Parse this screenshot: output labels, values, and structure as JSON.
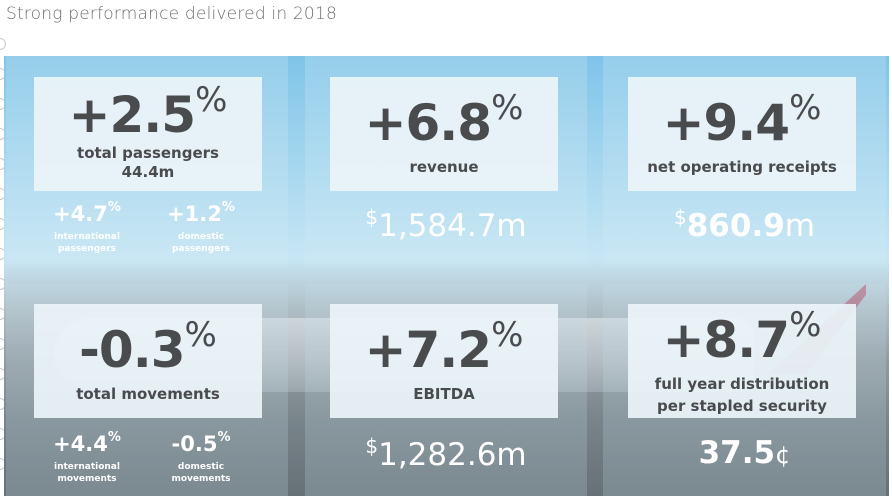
{
  "page": {
    "title": "Strong performance delivered in 2018"
  },
  "tiles": [
    {
      "value": "+2.5",
      "suffix": "%",
      "label": "total passengers",
      "sublabel": "44.4m",
      "breakdown": [
        {
          "value": "+4.7",
          "suffix": "%",
          "label_line1": "international",
          "label_line2": "passengers"
        },
        {
          "value": "+1.2",
          "suffix": "%",
          "label_line1": "domestic",
          "label_line2": "passengers"
        }
      ]
    },
    {
      "value": "+6.8",
      "suffix": "%",
      "label": "revenue",
      "amount": {
        "currency": "$",
        "number": "1,584.7",
        "unit": "m"
      }
    },
    {
      "value": "+9.4",
      "suffix": "%",
      "label": "net operating receipts",
      "amount": {
        "currency": "$",
        "number": "860.9",
        "unit": "m"
      }
    },
    {
      "value": "-0.3",
      "suffix": "%",
      "label": "total movements",
      "breakdown": [
        {
          "value": "+4.4",
          "suffix": "%",
          "label_line1": "international",
          "label_line2": "movements"
        },
        {
          "value": "-0.5",
          "suffix": "%",
          "label_line1": "domestic",
          "label_line2": "movements"
        }
      ]
    },
    {
      "value": "+7.2",
      "suffix": "%",
      "label": "EBITDA",
      "amount": {
        "currency": "$",
        "number": "1,282.6",
        "unit": "m"
      }
    },
    {
      "value": "+8.7",
      "suffix": "%",
      "label_line1": "full year distribution",
      "label_line2": "per stapled security",
      "amount": {
        "number": "37.5",
        "unit": "¢"
      }
    }
  ],
  "colors": {
    "panel_text": "#4a4b4d",
    "overlay_text": "#ffffff",
    "title_text": "#6d6e71",
    "sky": "#7fc4e8"
  }
}
